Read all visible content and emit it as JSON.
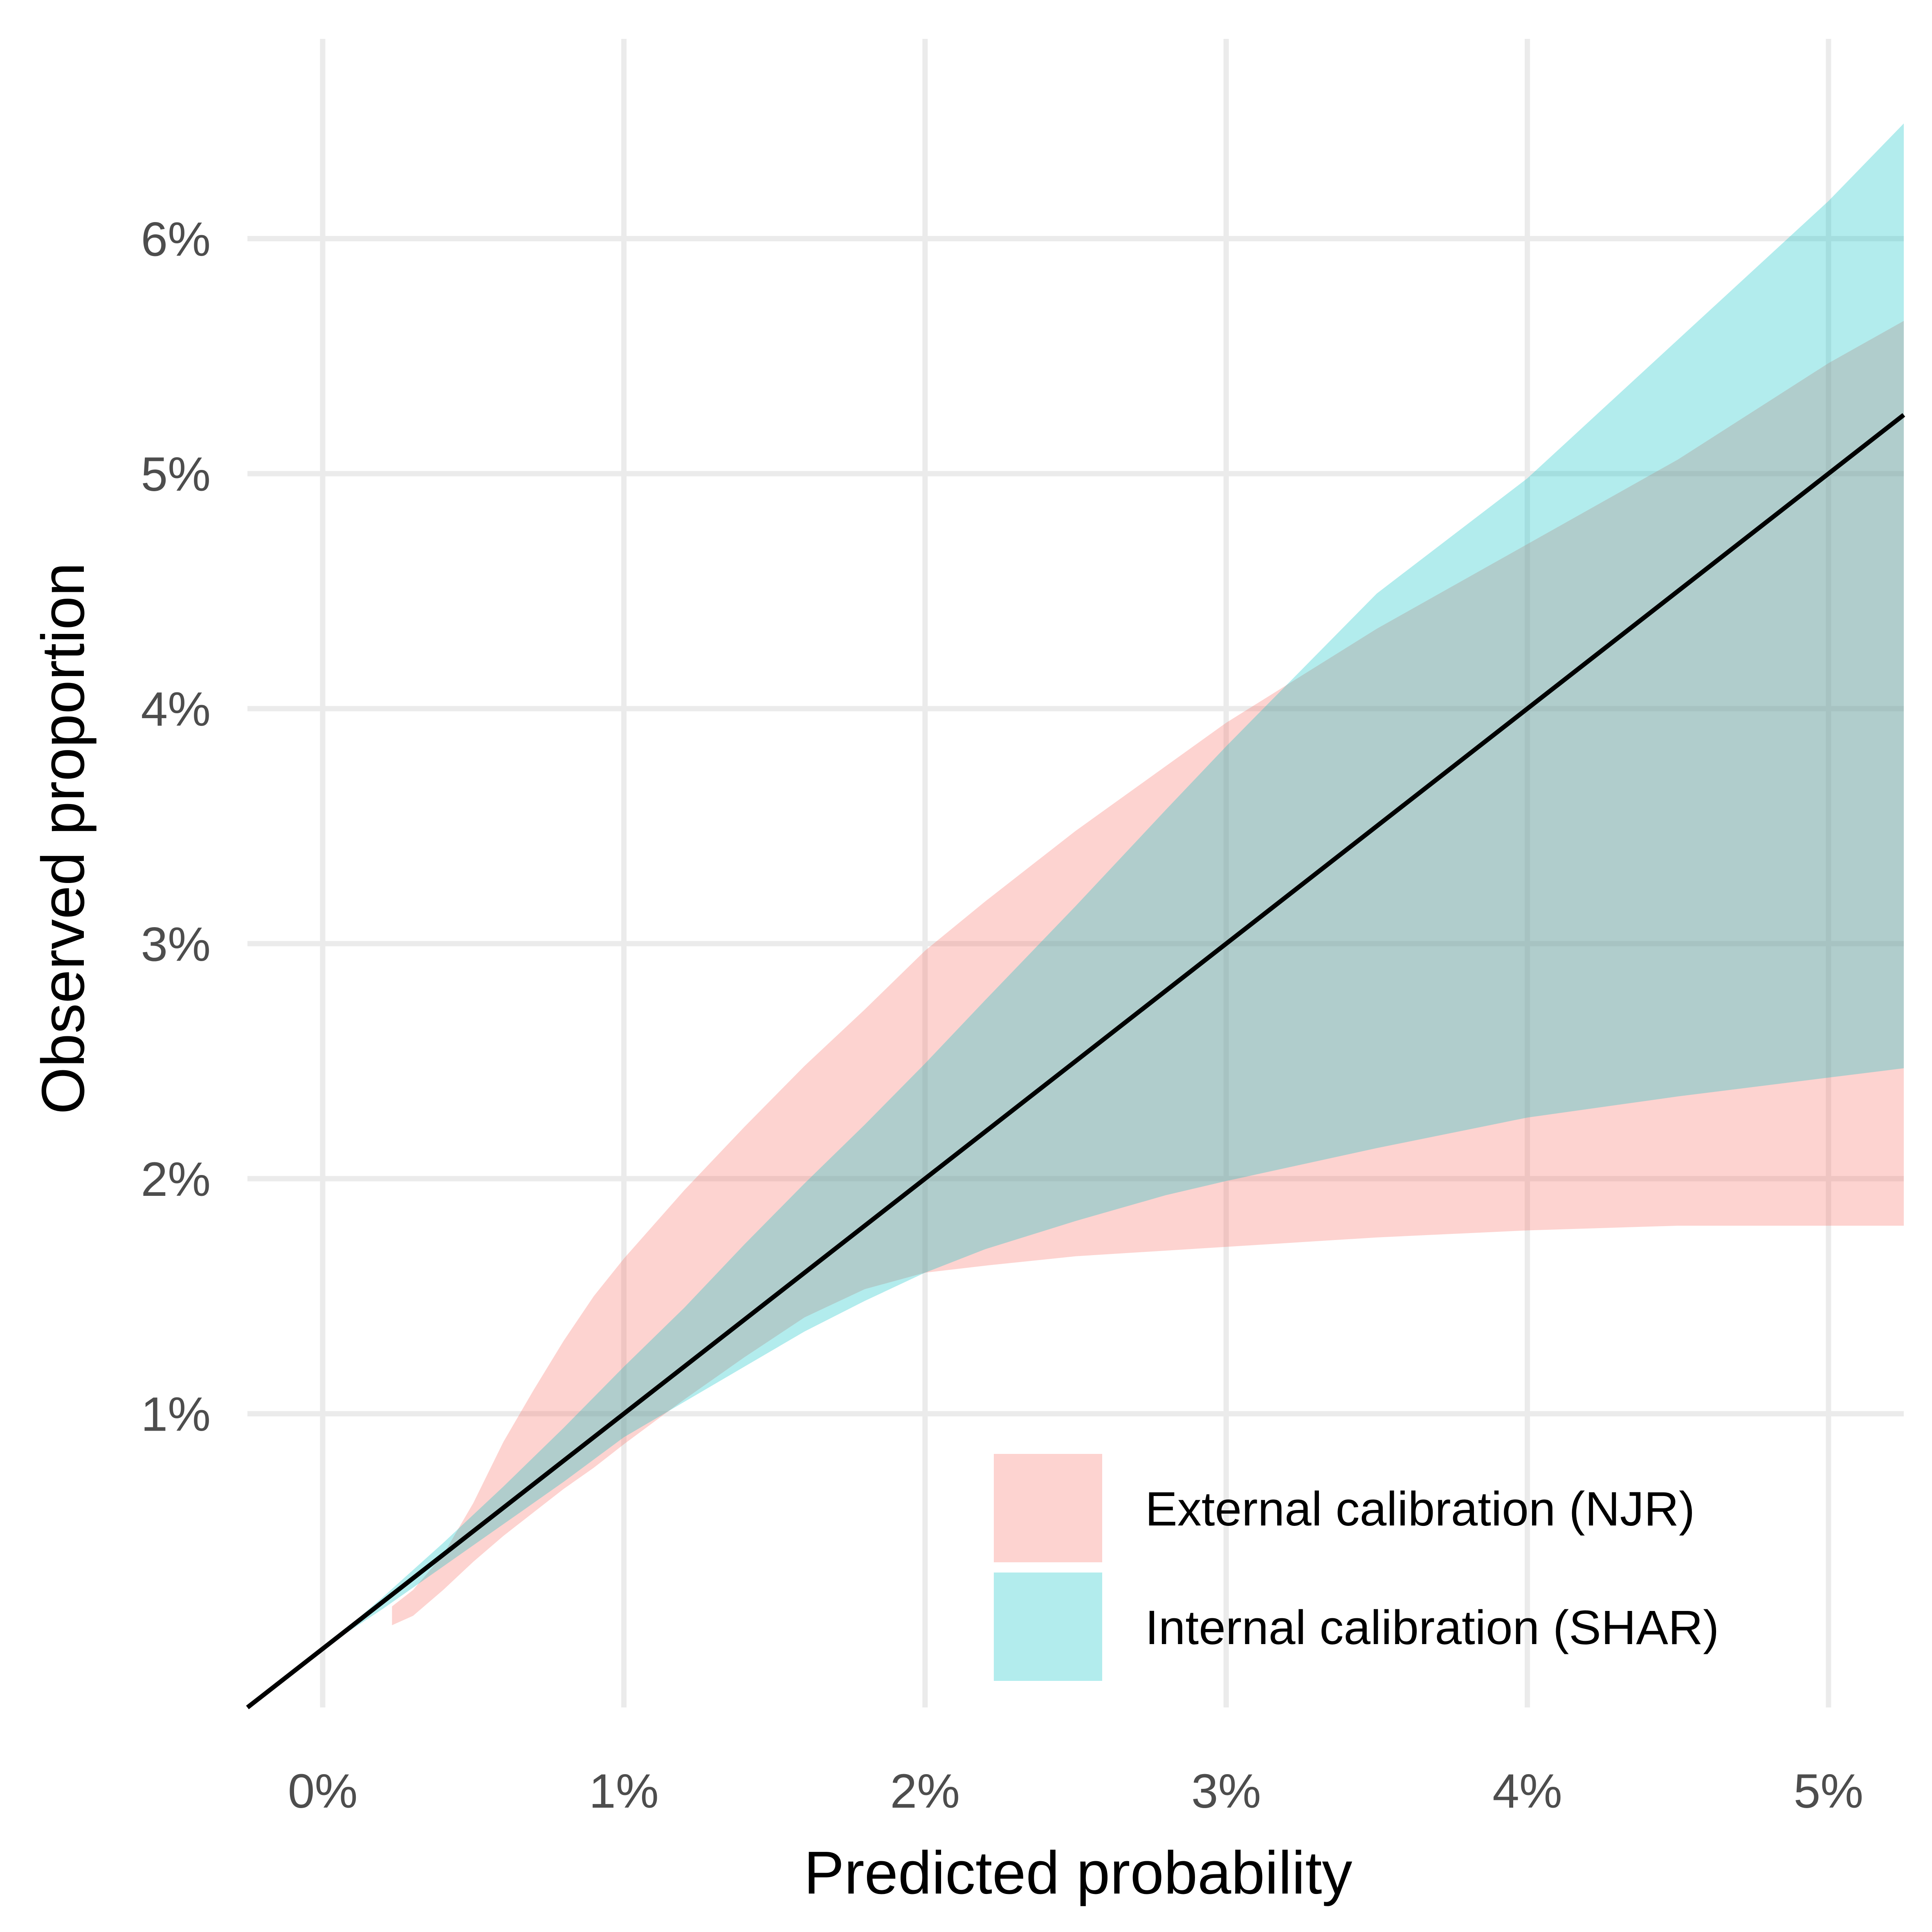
{
  "chart_data": {
    "type": "area",
    "xlabel": "Predicted probability",
    "ylabel": "Observed proportion",
    "xlim": [
      -0.0025,
      0.0525
    ],
    "ylim": [
      -0.0025,
      0.0685
    ],
    "x_ticks": [
      0,
      0.01,
      0.02,
      0.03,
      0.04,
      0.05
    ],
    "x_tick_labels": [
      "0%",
      "1%",
      "2%",
      "3%",
      "4%",
      "5%"
    ],
    "y_ticks": [
      0.01,
      0.02,
      0.03,
      0.04,
      0.05,
      0.06
    ],
    "y_tick_labels": [
      "1%",
      "2%",
      "3%",
      "4%",
      "5%",
      "6%"
    ],
    "grid": true,
    "legend_position": "bottom-right",
    "series": [
      {
        "name": "External calibration (NJR)",
        "color": "#F8766D",
        "opacity": 0.32,
        "x": [
          0.0023,
          0.003,
          0.004,
          0.005,
          0.006,
          0.007,
          0.008,
          0.009,
          0.01,
          0.012,
          0.014,
          0.016,
          0.018,
          0.02,
          0.022,
          0.025,
          0.03,
          0.035,
          0.04,
          0.045,
          0.05,
          0.0525
        ],
        "lower": [
          0.001,
          0.0014,
          0.0025,
          0.0037,
          0.0048,
          0.0058,
          0.0068,
          0.0077,
          0.0087,
          0.0106,
          0.0124,
          0.0141,
          0.0153,
          0.016,
          0.0163,
          0.0167,
          0.0171,
          0.0175,
          0.0178,
          0.018,
          0.018,
          0.018
        ],
        "upper": [
          0.0018,
          0.0025,
          0.004,
          0.0062,
          0.0088,
          0.011,
          0.0131,
          0.015,
          0.0166,
          0.0195,
          0.0222,
          0.0248,
          0.0272,
          0.0297,
          0.0318,
          0.0348,
          0.0394,
          0.0434,
          0.047,
          0.0506,
          0.0547,
          0.0565
        ]
      },
      {
        "name": "Internal calibration (SHAR)",
        "color": "#00BFC4",
        "opacity": 0.3,
        "x": [
          0,
          0.002,
          0.004,
          0.006,
          0.008,
          0.01,
          0.012,
          0.014,
          0.016,
          0.018,
          0.02,
          0.022,
          0.025,
          0.028,
          0.03,
          0.035,
          0.04,
          0.045,
          0.05,
          0.0525
        ],
        "lower": [
          0,
          0.0017,
          0.0035,
          0.0053,
          0.0071,
          0.009,
          0.0105,
          0.012,
          0.0135,
          0.0148,
          0.016,
          0.017,
          0.0182,
          0.0193,
          0.0199,
          0.0213,
          0.0226,
          0.0235,
          0.0243,
          0.0247
        ],
        "upper": [
          0,
          0.0022,
          0.0045,
          0.0069,
          0.0094,
          0.012,
          0.0145,
          0.0172,
          0.0198,
          0.0223,
          0.0249,
          0.0276,
          0.0316,
          0.0357,
          0.0384,
          0.0449,
          0.0498,
          0.0557,
          0.0616,
          0.0649
        ]
      }
    ],
    "reference_line": {
      "x": [
        -0.0025,
        0.0525
      ],
      "y": [
        -0.0025,
        0.0525
      ],
      "color": "#000000"
    }
  }
}
